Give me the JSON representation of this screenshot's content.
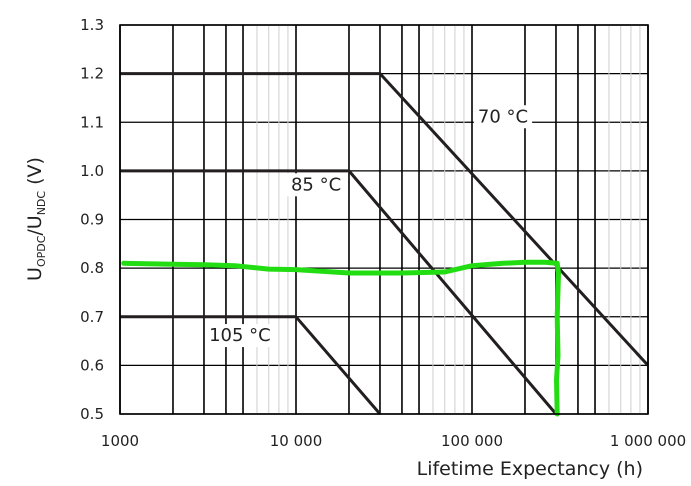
{
  "chart_data": {
    "type": "line",
    "xscale": "log",
    "xlim": [
      1000,
      1000000
    ],
    "ylim": [
      0.5,
      1.3
    ],
    "xlabel": "Lifetime Expectancy (h)",
    "ylabel": {
      "base1": "U",
      "sub1": "OPDC",
      "mid": "/U",
      "sub2": "NDC",
      "unit": " (V)"
    },
    "x_ticks": [
      {
        "value": 1000,
        "label": "1000"
      },
      {
        "value": 10000,
        "label": "10 000"
      },
      {
        "value": 100000,
        "label": "100 000"
      },
      {
        "value": 1000000,
        "label": "1 000 000"
      }
    ],
    "y_ticks": [
      {
        "value": 0.5,
        "label": "0.5"
      },
      {
        "value": 0.6,
        "label": "0.6"
      },
      {
        "value": 0.7,
        "label": "0.7"
      },
      {
        "value": 0.8,
        "label": "0.8"
      },
      {
        "value": 0.9,
        "label": "0.9"
      },
      {
        "value": 1.0,
        "label": "1.0"
      },
      {
        "value": 1.1,
        "label": "1.1"
      },
      {
        "value": 1.2,
        "label": "1.2"
      },
      {
        "value": 1.3,
        "label": "1.3"
      }
    ],
    "grid": true,
    "series": [
      {
        "name": "70 °C",
        "color": "#231f20",
        "points": [
          [
            1000,
            1.2
          ],
          [
            30000,
            1.2
          ],
          [
            1000000,
            0.6
          ]
        ],
        "label_at": [
          150000,
          1.1
        ]
      },
      {
        "name": "85 °C",
        "color": "#231f20",
        "points": [
          [
            1000,
            1.0
          ],
          [
            20000,
            1.0
          ],
          [
            300000,
            0.5
          ]
        ],
        "label_at": [
          13000,
          0.96
        ]
      },
      {
        "name": "105 °C",
        "color": "#231f20",
        "points": [
          [
            1000,
            0.7
          ],
          [
            10000,
            0.7
          ],
          [
            30000,
            0.5
          ]
        ],
        "label_at": [
          4800,
          0.65
        ]
      }
    ],
    "overlay": {
      "color": "#22dd11",
      "points": [
        [
          1050,
          0.81
        ],
        [
          2000,
          0.808
        ],
        [
          3000,
          0.807
        ],
        [
          4500,
          0.805
        ],
        [
          7000,
          0.798
        ],
        [
          10000,
          0.797
        ],
        [
          20000,
          0.79
        ],
        [
          40000,
          0.79
        ],
        [
          70000,
          0.792
        ],
        [
          100000,
          0.805
        ],
        [
          150000,
          0.81
        ],
        [
          200000,
          0.812
        ],
        [
          260000,
          0.812
        ],
        [
          305000,
          0.81
        ],
        [
          310000,
          0.79
        ],
        [
          305000,
          0.7
        ],
        [
          308000,
          0.62
        ],
        [
          302000,
          0.57
        ],
        [
          305000,
          0.5
        ]
      ]
    }
  }
}
